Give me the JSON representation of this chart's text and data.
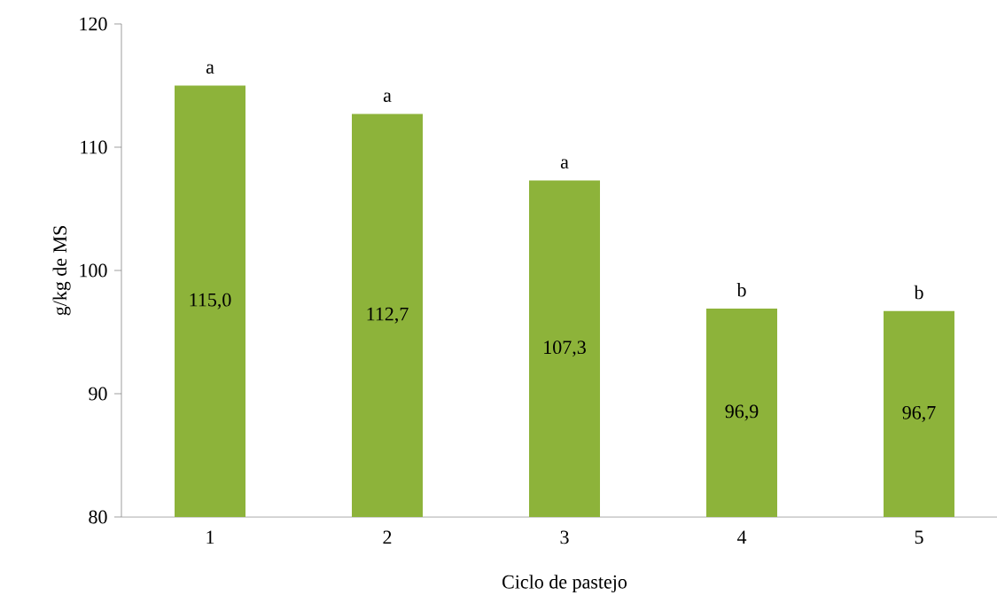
{
  "chart_data": {
    "type": "bar",
    "xlabel": "Ciclo de pastejo",
    "ylabel": "g/kg de MS",
    "categories": [
      "1",
      "2",
      "3",
      "4",
      "5"
    ],
    "values": [
      115.0,
      112.7,
      107.3,
      96.9,
      96.7
    ],
    "value_labels": [
      "115,0",
      "112,7",
      "107,3",
      "96,9",
      "96,7"
    ],
    "color": "#8db33a",
    "ylim": [
      80,
      120
    ],
    "yticks": [
      80,
      90,
      100,
      110,
      120
    ],
    "annotations": [
      {
        "text": "a",
        "x": "1",
        "y": 115.0
      },
      {
        "text": "a",
        "x": "2",
        "y": 112.7
      },
      {
        "text": "a",
        "x": "3",
        "y": 107.3
      },
      {
        "text": "b",
        "x": "4",
        "y": 96.9
      },
      {
        "text": "b",
        "x": "5",
        "y": 96.7
      }
    ]
  }
}
